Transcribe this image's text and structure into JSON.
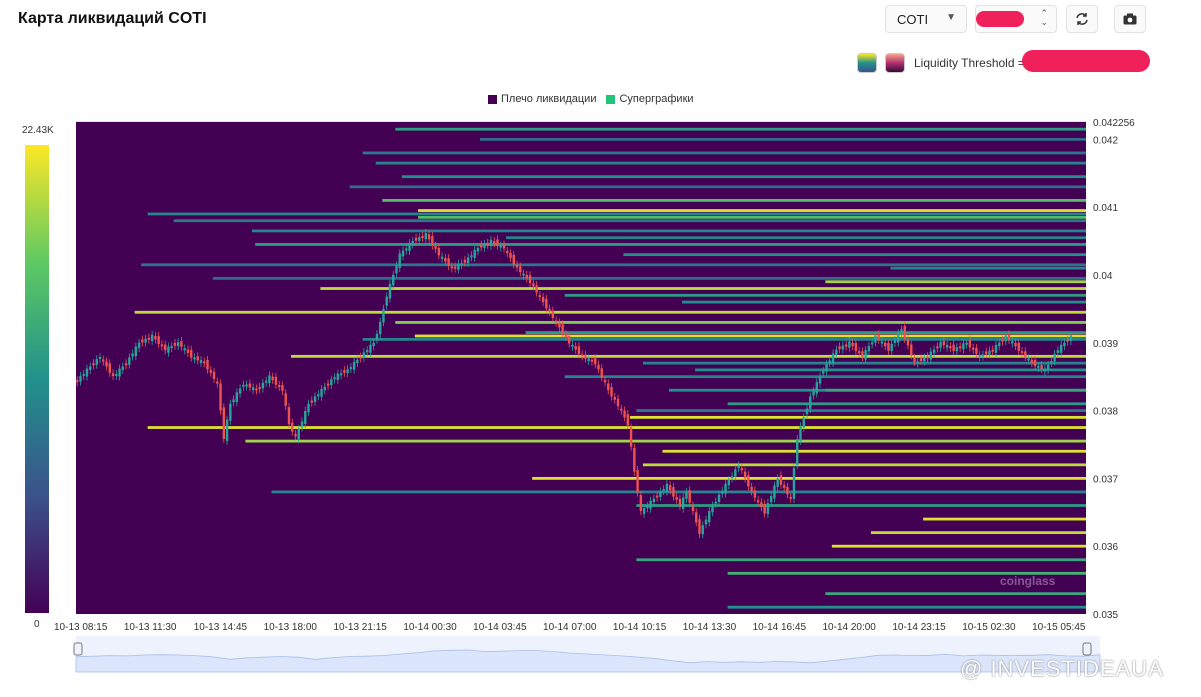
{
  "header": {
    "title": "Карта ликвидаций COTI"
  },
  "controls": {
    "symbol_select": "COTI",
    "threshold_label": "Liquidity Threshold ="
  },
  "icons": {
    "refresh": "refresh-icon",
    "camera": "camera-icon",
    "palette_viridis": "viridis-palette-icon",
    "palette_heat": "heat-palette-icon"
  },
  "colorbar": {
    "max_label": "22.43K",
    "min_label": "0"
  },
  "watermarks": {
    "brand": "coinglass",
    "source": "@ INVESTIDEAUA"
  },
  "colors": {
    "background": "#440154",
    "high": "#fde725",
    "mid": "#21918c",
    "low": "#3b528b",
    "candle_up": "#26a69a",
    "candle_down": "#ef5350",
    "navigator_fill": "#dbe5fb"
  },
  "chart_data": {
    "type": "heatmap",
    "title": "Карта ликвидаций COTI",
    "legend": [
      {
        "name": "Плечо ликвидации",
        "color": "#440154"
      },
      {
        "name": "Суперграфики",
        "color": "#21c47a"
      }
    ],
    "legend_position": "top-center",
    "x_ticks": [
      "10-13 08:15",
      "10-13 11:30",
      "10-13 14:45",
      "10-13 18:00",
      "10-13 21:15",
      "10-14 00:30",
      "10-14 03:45",
      "10-14 07:00",
      "10-14 10:15",
      "10-14 13:30",
      "10-14 16:45",
      "10-14 20:00",
      "10-14 23:15",
      "10-15 02:30",
      "10-15 05:45"
    ],
    "y_ticks": [
      0.035,
      0.036,
      0.037,
      0.038,
      0.039,
      0.04,
      0.041,
      0.042
    ],
    "y_max_label": "0.042256",
    "ylim": [
      0.035,
      0.042256
    ],
    "colorbar_range": [
      0,
      22430
    ],
    "price_path": [
      [
        0,
        0.0384
      ],
      [
        4,
        0.0386
      ],
      [
        8,
        0.0388
      ],
      [
        12,
        0.0385
      ],
      [
        16,
        0.0387
      ],
      [
        20,
        0.039
      ],
      [
        24,
        0.0391
      ],
      [
        28,
        0.0389
      ],
      [
        32,
        0.039
      ],
      [
        36,
        0.0388
      ],
      [
        40,
        0.0387
      ],
      [
        44,
        0.0384
      ],
      [
        46,
        0.0376
      ],
      [
        48,
        0.0381
      ],
      [
        52,
        0.0384
      ],
      [
        56,
        0.0383
      ],
      [
        60,
        0.0385
      ],
      [
        64,
        0.0383
      ],
      [
        66,
        0.0378
      ],
      [
        68,
        0.0376
      ],
      [
        72,
        0.0381
      ],
      [
        76,
        0.0383
      ],
      [
        80,
        0.0385
      ],
      [
        84,
        0.0386
      ],
      [
        88,
        0.0388
      ],
      [
        92,
        0.039
      ],
      [
        94,
        0.0393
      ],
      [
        96,
        0.0397
      ],
      [
        98,
        0.04
      ],
      [
        100,
        0.0403
      ],
      [
        104,
        0.0405
      ],
      [
        108,
        0.0406
      ],
      [
        112,
        0.0403
      ],
      [
        116,
        0.0401
      ],
      [
        120,
        0.0402
      ],
      [
        124,
        0.0404
      ],
      [
        128,
        0.0405
      ],
      [
        132,
        0.0404
      ],
      [
        136,
        0.0401
      ],
      [
        140,
        0.0399
      ],
      [
        144,
        0.0396
      ],
      [
        148,
        0.0393
      ],
      [
        152,
        0.039
      ],
      [
        156,
        0.0388
      ],
      [
        160,
        0.0387
      ],
      [
        164,
        0.0383
      ],
      [
        168,
        0.038
      ],
      [
        170,
        0.0378
      ],
      [
        172,
        0.0371
      ],
      [
        174,
        0.0365
      ],
      [
        178,
        0.0367
      ],
      [
        182,
        0.0369
      ],
      [
        186,
        0.0366
      ],
      [
        188,
        0.0368
      ],
      [
        192,
        0.0362
      ],
      [
        196,
        0.0366
      ],
      [
        200,
        0.0369
      ],
      [
        204,
        0.0372
      ],
      [
        208,
        0.0368
      ],
      [
        212,
        0.0365
      ],
      [
        216,
        0.037
      ],
      [
        220,
        0.0367
      ],
      [
        222,
        0.0376
      ],
      [
        226,
        0.0382
      ],
      [
        230,
        0.0386
      ],
      [
        234,
        0.0389
      ],
      [
        238,
        0.039
      ],
      [
        242,
        0.0388
      ],
      [
        246,
        0.0391
      ],
      [
        250,
        0.0389
      ],
      [
        254,
        0.0392
      ],
      [
        258,
        0.0387
      ],
      [
        262,
        0.0388
      ],
      [
        266,
        0.039
      ],
      [
        270,
        0.0389
      ],
      [
        274,
        0.039
      ],
      [
        278,
        0.0388
      ],
      [
        282,
        0.0389
      ],
      [
        286,
        0.0391
      ],
      [
        290,
        0.0389
      ],
      [
        294,
        0.0387
      ],
      [
        298,
        0.0386
      ],
      [
        302,
        0.0389
      ],
      [
        306,
        0.0391
      ]
    ],
    "levels": [
      {
        "p": 0.04215,
        "s": 98,
        "i": 0.55
      },
      {
        "p": 0.042,
        "s": 124,
        "i": 0.35
      },
      {
        "p": 0.0418,
        "s": 88,
        "i": 0.4
      },
      {
        "p": 0.04165,
        "s": 92,
        "i": 0.45
      },
      {
        "p": 0.04145,
        "s": 100,
        "i": 0.5
      },
      {
        "p": 0.0413,
        "s": 84,
        "i": 0.35
      },
      {
        "p": 0.0411,
        "s": 94,
        "i": 0.7
      },
      {
        "p": 0.04095,
        "s": 105,
        "i": 0.95
      },
      {
        "p": 0.0409,
        "s": 22,
        "i": 0.45
      },
      {
        "p": 0.04085,
        "s": 105,
        "i": 0.7
      },
      {
        "p": 0.0408,
        "s": 30,
        "i": 0.4
      },
      {
        "p": 0.04065,
        "s": 54,
        "i": 0.45
      },
      {
        "p": 0.04055,
        "s": 132,
        "i": 0.45
      },
      {
        "p": 0.04045,
        "s": 55,
        "i": 0.55
      },
      {
        "p": 0.0403,
        "s": 168,
        "i": 0.5
      },
      {
        "p": 0.04015,
        "s": 20,
        "i": 0.4
      },
      {
        "p": 0.0401,
        "s": 250,
        "i": 0.45
      },
      {
        "p": 0.03995,
        "s": 42,
        "i": 0.35
      },
      {
        "p": 0.0399,
        "s": 230,
        "i": 0.85
      },
      {
        "p": 0.0398,
        "s": 75,
        "i": 0.9
      },
      {
        "p": 0.0397,
        "s": 150,
        "i": 0.55
      },
      {
        "p": 0.0396,
        "s": 186,
        "i": 0.5
      },
      {
        "p": 0.03945,
        "s": 18,
        "i": 0.9
      },
      {
        "p": 0.0393,
        "s": 98,
        "i": 0.8
      },
      {
        "p": 0.03915,
        "s": 138,
        "i": 0.55
      },
      {
        "p": 0.0391,
        "s": 104,
        "i": 0.95
      },
      {
        "p": 0.03905,
        "s": 88,
        "i": 0.45
      },
      {
        "p": 0.0388,
        "s": 66,
        "i": 0.9
      },
      {
        "p": 0.0387,
        "s": 174,
        "i": 0.45
      },
      {
        "p": 0.0386,
        "s": 190,
        "i": 0.5
      },
      {
        "p": 0.0385,
        "s": 150,
        "i": 0.45
      },
      {
        "p": 0.0383,
        "s": 182,
        "i": 0.5
      },
      {
        "p": 0.0383,
        "s": 230,
        "i": 0.6
      },
      {
        "p": 0.0381,
        "s": 200,
        "i": 0.55
      },
      {
        "p": 0.038,
        "s": 172,
        "i": 0.4
      },
      {
        "p": 0.0379,
        "s": 170,
        "i": 0.95
      },
      {
        "p": 0.03775,
        "s": 22,
        "i": 0.95
      },
      {
        "p": 0.03755,
        "s": 52,
        "i": 0.85
      },
      {
        "p": 0.0374,
        "s": 180,
        "i": 0.95
      },
      {
        "p": 0.0372,
        "s": 174,
        "i": 0.9
      },
      {
        "p": 0.037,
        "s": 140,
        "i": 0.95
      },
      {
        "p": 0.0368,
        "s": 60,
        "i": 0.45
      },
      {
        "p": 0.0366,
        "s": 172,
        "i": 0.55
      },
      {
        "p": 0.0364,
        "s": 260,
        "i": 0.95
      },
      {
        "p": 0.0362,
        "s": 244,
        "i": 0.9
      },
      {
        "p": 0.036,
        "s": 232,
        "i": 0.95
      },
      {
        "p": 0.0358,
        "s": 172,
        "i": 0.6
      },
      {
        "p": 0.0356,
        "s": 200,
        "i": 0.65
      },
      {
        "p": 0.0353,
        "s": 230,
        "i": 0.6
      },
      {
        "p": 0.0351,
        "s": 200,
        "i": 0.5
      }
    ]
  }
}
